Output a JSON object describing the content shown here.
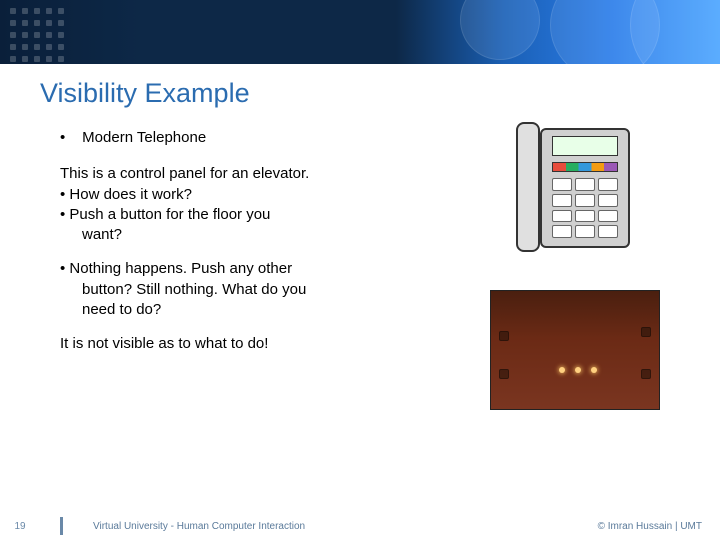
{
  "banner": {
    "gradient_colors": [
      "#0a1f3a",
      "#0d2847",
      "#1a5fb4",
      "#2b7de9",
      "#4da6ff"
    ]
  },
  "title": "Visibility Example",
  "bullet_main": "Modern Telephone",
  "body": {
    "line1": "This is a control panel for an elevator.",
    "line2": "• How does it work?",
    "line3": "• Push a button for the floor you",
    "line3b": "want?",
    "line4": "• Nothing happens. Push any other",
    "line4b": "button? Still nothing. What do you",
    "line4c": "need to do?",
    "line5": "It is not visible as to what to do!"
  },
  "images": {
    "phone_name": "telephone-illustration",
    "elevator_name": "elevator-panel-photo",
    "elevator_bg": "#6b2a15",
    "elevator_light_color": "#ffd080"
  },
  "footer": {
    "page_number": "19",
    "center_text": "Virtual University - Human Computer Interaction",
    "right_text": "© Imran Hussain | UMT"
  },
  "colors": {
    "title_color": "#2b6cb0",
    "body_text": "#000000",
    "footer_text": "#5a7a9a"
  }
}
